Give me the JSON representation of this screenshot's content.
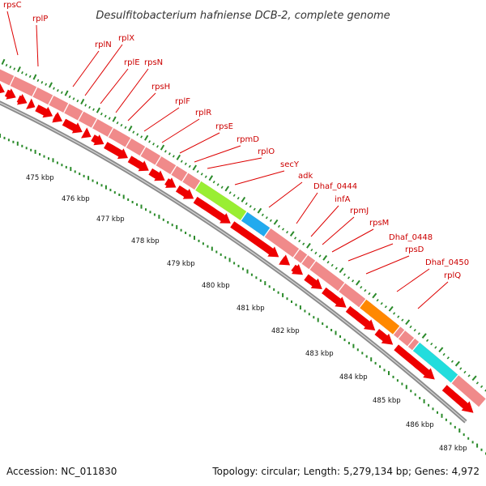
{
  "title": "Desulfitobacterium hafniense DCB-2, complete genome",
  "footer": {
    "accession": "Accession: NC_011830",
    "topology": "Topology: circular; Length: 5,279,134 bp; Genes: 4,972"
  },
  "colors": {
    "feature_band": "#f08a8a",
    "cds_arrow": "#ee0000",
    "leader": "#dd0000",
    "scale_ticks": "#2a8a2a",
    "backbone": "#8c8c8c",
    "highlight_green": "#99ee33",
    "highlight_blue": "#22aaee",
    "highlight_orange": "#ff8800",
    "highlight_cyan": "#22dddd"
  },
  "gene_labels": [
    "rpsC",
    "rplP",
    "rplN",
    "rplX",
    "rplE",
    "rpsN",
    "rpsH",
    "rplF",
    "rplR",
    "rpsE",
    "rpmD",
    "rplO",
    "secY",
    "adk",
    "Dhaf_0444",
    "infA",
    "rpmJ",
    "rpsM",
    "Dhaf_0448",
    "rpsD",
    "Dhaf_0450",
    "rplQ"
  ],
  "kbp_labels": [
    "475 kbp",
    "476 kbp",
    "477 kbp",
    "478 kbp",
    "479 kbp",
    "480 kbp",
    "481 kbp",
    "482 kbp",
    "483 kbp",
    "484 kbp",
    "485 kbp",
    "486 kbp",
    "487 kbp"
  ]
}
